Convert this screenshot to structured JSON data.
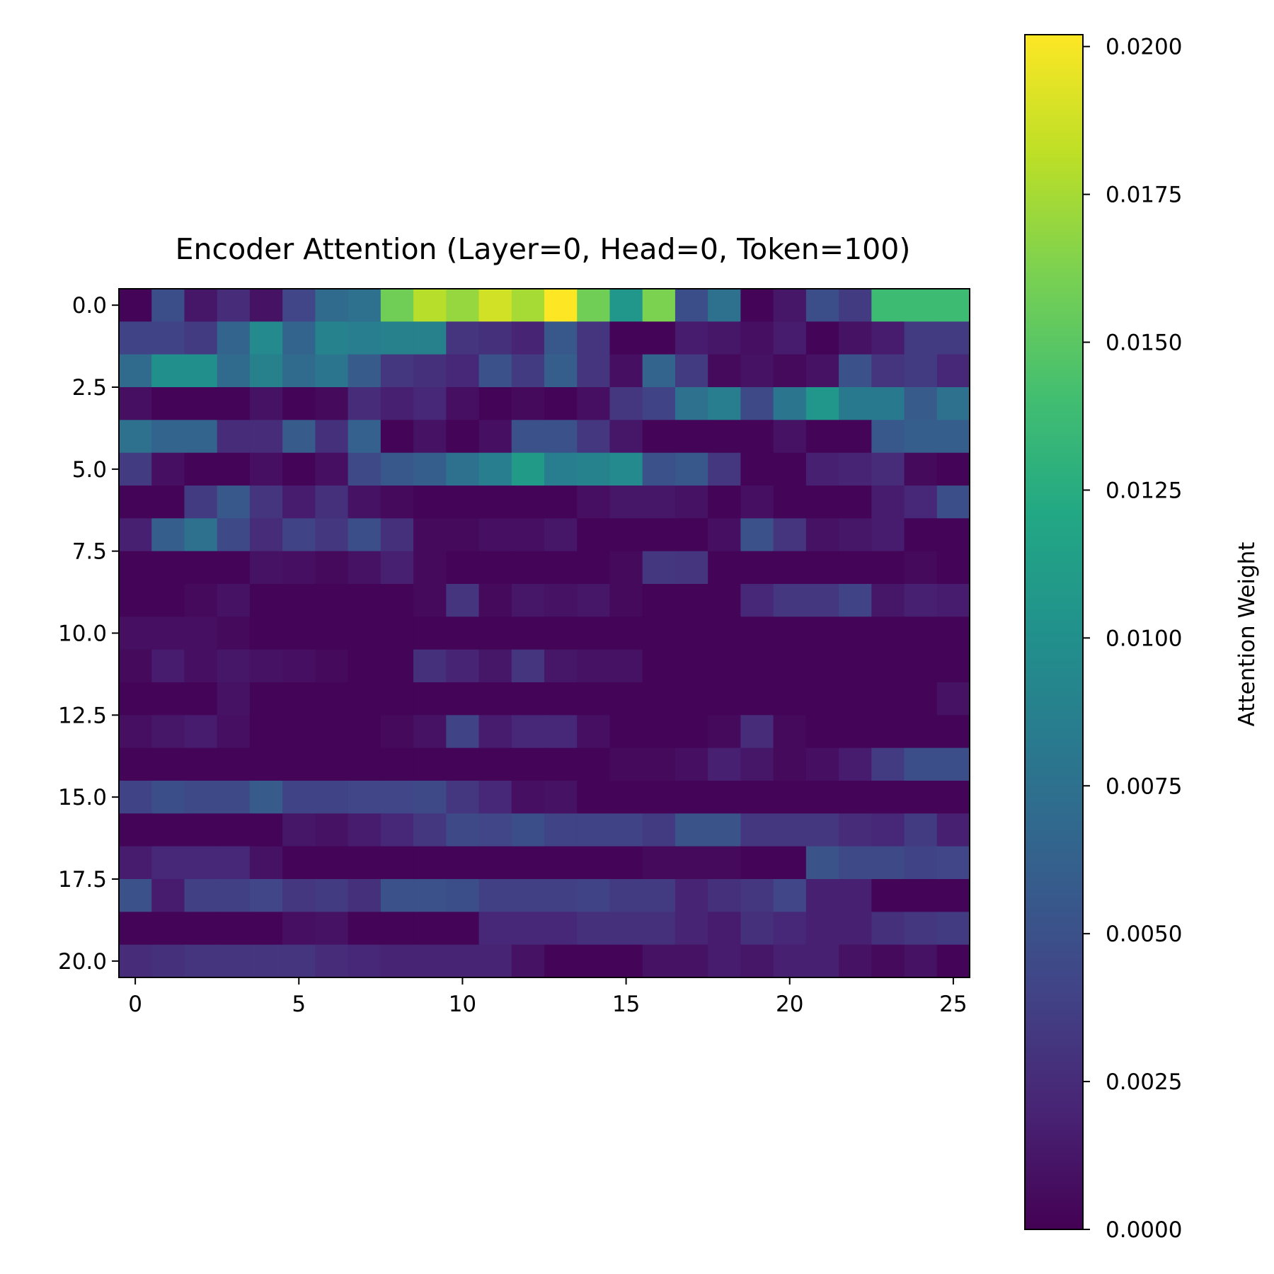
{
  "chart_data": {
    "type": "heatmap",
    "title": "Encoder Attention (Layer=0, Head=0, Token=100)",
    "xlabel": "",
    "ylabel": "",
    "colormap": "viridis",
    "n_rows": 21,
    "n_cols": 26,
    "x_ticks": [
      0,
      5,
      10,
      15,
      20,
      25
    ],
    "x_tick_labels": [
      "0",
      "5",
      "10",
      "15",
      "20",
      "25"
    ],
    "y_ticks": [
      0,
      2.5,
      5,
      7.5,
      10,
      12.5,
      15,
      17.5,
      20
    ],
    "y_tick_labels": [
      "0.0",
      "2.5",
      "5.0",
      "7.5",
      "10.0",
      "12.5",
      "15.0",
      "17.5",
      "20.0"
    ],
    "colorbar": {
      "label": "Attention Weight",
      "vmin": 0.0,
      "vmax": 0.0202,
      "ticks": [
        0,
        0.0025,
        0.005,
        0.0075,
        0.01,
        0.0125,
        0.015,
        0.0175,
        0.02
      ],
      "tick_labels": [
        "0.0000",
        "0.0025",
        "0.0050",
        "0.0075",
        "0.0100",
        "0.0125",
        "0.0150",
        "0.0175",
        "0.0200"
      ]
    },
    "values": [
      [
        0.0002,
        0.0048,
        0.0012,
        0.0025,
        0.001,
        0.0042,
        0.007,
        0.0075,
        0.0158,
        0.018,
        0.017,
        0.0188,
        0.0175,
        0.0202,
        0.0158,
        0.0105,
        0.0162,
        0.0048,
        0.0075,
        0.0002,
        0.0012,
        0.0048,
        0.0035,
        0.0138,
        0.0138,
        0.0138
      ],
      [
        0.004,
        0.004,
        0.0035,
        0.0065,
        0.0095,
        0.0065,
        0.009,
        0.0085,
        0.0088,
        0.0088,
        0.003,
        0.0028,
        0.002,
        0.0055,
        0.003,
        0.0002,
        0.0002,
        0.0015,
        0.0012,
        0.0008,
        0.0015,
        0.0002,
        0.001,
        0.0015,
        0.0035,
        0.0035
      ],
      [
        0.007,
        0.01,
        0.01,
        0.007,
        0.0088,
        0.007,
        0.0078,
        0.0058,
        0.0032,
        0.0028,
        0.0022,
        0.005,
        0.0035,
        0.006,
        0.003,
        0.0008,
        0.0065,
        0.0035,
        0.0005,
        0.001,
        0.0005,
        0.001,
        0.005,
        0.003,
        0.0035,
        0.0022
      ],
      [
        0.0008,
        0.0002,
        0.0002,
        0.0002,
        0.001,
        0.0002,
        0.0005,
        0.0025,
        0.0018,
        0.0022,
        0.0008,
        0.0002,
        0.0005,
        0.0002,
        0.0008,
        0.0032,
        0.004,
        0.0075,
        0.0085,
        0.0045,
        0.0078,
        0.0105,
        0.0082,
        0.0082,
        0.0058,
        0.0075
      ],
      [
        0.0075,
        0.0065,
        0.0065,
        0.0025,
        0.0025,
        0.0058,
        0.0028,
        0.0062,
        0.0002,
        0.001,
        0.0002,
        0.0008,
        0.005,
        0.005,
        0.0032,
        0.0012,
        0.0002,
        0.0002,
        0.0002,
        0.0002,
        0.001,
        0.0002,
        0.0002,
        0.0055,
        0.006,
        0.006
      ],
      [
        0.0035,
        0.0008,
        0.0002,
        0.0002,
        0.0008,
        0.0002,
        0.0008,
        0.0045,
        0.0055,
        0.006,
        0.0075,
        0.0085,
        0.011,
        0.0085,
        0.009,
        0.0095,
        0.005,
        0.0055,
        0.0032,
        0.0002,
        0.0002,
        0.0018,
        0.002,
        0.0025,
        0.0005,
        0.0002
      ],
      [
        0.0002,
        0.0002,
        0.0035,
        0.0055,
        0.003,
        0.0015,
        0.0028,
        0.001,
        0.0005,
        0.0002,
        0.0002,
        0.0002,
        0.0002,
        0.0002,
        0.0008,
        0.0012,
        0.0012,
        0.001,
        0.0002,
        0.0008,
        0.0002,
        0.0002,
        0.0002,
        0.0015,
        0.0022,
        0.0048
      ],
      [
        0.0018,
        0.006,
        0.0075,
        0.0045,
        0.0025,
        0.004,
        0.0032,
        0.0048,
        0.0028,
        0.0005,
        0.0005,
        0.0008,
        0.0008,
        0.0012,
        0.0002,
        0.0002,
        0.0002,
        0.0002,
        0.0008,
        0.005,
        0.003,
        0.001,
        0.0012,
        0.0015,
        0.0002,
        0.0002
      ],
      [
        0.0002,
        0.0002,
        0.0002,
        0.0002,
        0.001,
        0.0008,
        0.0005,
        0.001,
        0.0018,
        0.0005,
        0.0002,
        0.0002,
        0.0002,
        0.0002,
        0.0002,
        0.0005,
        0.0032,
        0.003,
        0.0002,
        0.0002,
        0.0002,
        0.0002,
        0.0002,
        0.0002,
        0.0005,
        0.0002
      ],
      [
        0.0002,
        0.0002,
        0.0005,
        0.001,
        0.0002,
        0.0002,
        0.0002,
        0.0002,
        0.0002,
        0.0005,
        0.003,
        0.0005,
        0.0012,
        0.001,
        0.0012,
        0.0005,
        0.0002,
        0.0002,
        0.0002,
        0.0022,
        0.0032,
        0.0032,
        0.004,
        0.0012,
        0.0018,
        0.0015
      ],
      [
        0.0008,
        0.0008,
        0.0008,
        0.0005,
        0.0002,
        0.0002,
        0.0002,
        0.0002,
        0.0002,
        0.0002,
        0.0002,
        0.0002,
        0.0002,
        0.0002,
        0.0002,
        0.0002,
        0.0002,
        0.0002,
        0.0002,
        0.0002,
        0.0002,
        0.0002,
        0.0002,
        0.0002,
        0.0002,
        0.0002
      ],
      [
        0.0005,
        0.0015,
        0.0008,
        0.0012,
        0.001,
        0.0008,
        0.0005,
        0.0002,
        0.0002,
        0.0028,
        0.002,
        0.0012,
        0.003,
        0.0012,
        0.001,
        0.001,
        0.0002,
        0.0002,
        0.0002,
        0.0002,
        0.0002,
        0.0002,
        0.0002,
        0.0002,
        0.0002,
        0.0002
      ],
      [
        0.0002,
        0.0002,
        0.0002,
        0.001,
        0.0002,
        0.0002,
        0.0002,
        0.0002,
        0.0002,
        0.0002,
        0.0002,
        0.0002,
        0.0002,
        0.0002,
        0.0002,
        0.0002,
        0.0002,
        0.0002,
        0.0002,
        0.0002,
        0.0002,
        0.0002,
        0.0002,
        0.0002,
        0.0002,
        0.001
      ],
      [
        0.0008,
        0.0012,
        0.0015,
        0.0008,
        0.0002,
        0.0002,
        0.0002,
        0.0002,
        0.0005,
        0.001,
        0.004,
        0.0015,
        0.0022,
        0.0022,
        0.0008,
        0.0002,
        0.0002,
        0.0002,
        0.0005,
        0.0025,
        0.0005,
        0.0002,
        0.0002,
        0.0002,
        0.0002,
        0.0002
      ],
      [
        0.0002,
        0.0002,
        0.0002,
        0.0002,
        0.0002,
        0.0002,
        0.0002,
        0.0002,
        0.0002,
        0.0002,
        0.0002,
        0.0002,
        0.0002,
        0.0002,
        0.0002,
        0.0005,
        0.0005,
        0.0008,
        0.0018,
        0.0012,
        0.0005,
        0.0008,
        0.0015,
        0.0035,
        0.0048,
        0.0048
      ],
      [
        0.004,
        0.0048,
        0.0045,
        0.0045,
        0.0058,
        0.004,
        0.004,
        0.0042,
        0.0042,
        0.0045,
        0.0032,
        0.0022,
        0.0008,
        0.001,
        0.0002,
        0.0002,
        0.0002,
        0.0002,
        0.0002,
        0.0002,
        0.0002,
        0.0002,
        0.0002,
        0.0002,
        0.0002,
        0.0002
      ],
      [
        0.0002,
        0.0002,
        0.0002,
        0.0002,
        0.0002,
        0.0012,
        0.001,
        0.0015,
        0.0022,
        0.0032,
        0.0045,
        0.0042,
        0.0048,
        0.004,
        0.004,
        0.004,
        0.0035,
        0.0052,
        0.0052,
        0.0032,
        0.0032,
        0.0032,
        0.0025,
        0.0022,
        0.0035,
        0.0018
      ],
      [
        0.0015,
        0.0022,
        0.0022,
        0.0022,
        0.001,
        0.0002,
        0.0002,
        0.0002,
        0.0002,
        0.0002,
        0.0002,
        0.0002,
        0.0002,
        0.0002,
        0.0002,
        0.0002,
        0.0005,
        0.0005,
        0.0005,
        0.0002,
        0.0002,
        0.0052,
        0.0045,
        0.0045,
        0.004,
        0.0042
      ],
      [
        0.005,
        0.0015,
        0.0038,
        0.0038,
        0.0042,
        0.0032,
        0.0035,
        0.0028,
        0.005,
        0.005,
        0.0048,
        0.0038,
        0.0038,
        0.0038,
        0.004,
        0.0035,
        0.0035,
        0.002,
        0.0028,
        0.0032,
        0.0042,
        0.0018,
        0.0018,
        0.0002,
        0.0002,
        0.0002
      ],
      [
        0.0002,
        0.0002,
        0.0002,
        0.0002,
        0.0002,
        0.0008,
        0.001,
        0.0002,
        0.0002,
        0.0002,
        0.0002,
        0.0022,
        0.0022,
        0.0022,
        0.0028,
        0.0028,
        0.0028,
        0.002,
        0.0015,
        0.0028,
        0.0022,
        0.0018,
        0.0018,
        0.0028,
        0.0032,
        0.0035
      ],
      [
        0.0025,
        0.0028,
        0.003,
        0.003,
        0.003,
        0.003,
        0.0025,
        0.0022,
        0.002,
        0.002,
        0.002,
        0.002,
        0.001,
        0.0002,
        0.0002,
        0.0002,
        0.001,
        0.001,
        0.0015,
        0.0012,
        0.0018,
        0.0018,
        0.001,
        0.0005,
        0.001,
        0.0002
      ]
    ]
  }
}
